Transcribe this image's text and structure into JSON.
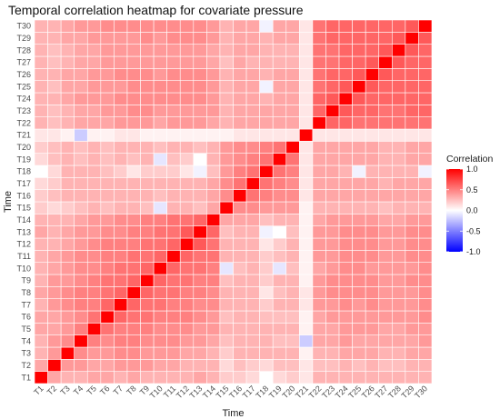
{
  "chart_data": {
    "type": "heatmap",
    "title": "Temporal correlation heatmap for covariate pressure",
    "xlabel": "Time",
    "ylabel": "Time",
    "labels": [
      "T1",
      "T2",
      "T3",
      "T4",
      "T5",
      "T6",
      "T7",
      "T8",
      "T9",
      "T10",
      "T11",
      "T12",
      "T13",
      "T14",
      "T15",
      "T16",
      "T17",
      "T18",
      "T19",
      "T20",
      "T21",
      "T22",
      "T23",
      "T24",
      "T25",
      "T26",
      "T27",
      "T28",
      "T29",
      "T30"
    ],
    "x_axis_order": "T1 to T30 left to right",
    "y_axis_order": "T1 at bottom to T30 at top",
    "color_scale": {
      "name": "Correlation",
      "range": [
        -1,
        1
      ],
      "low_color": "#0000ff",
      "mid_color": "#ffffff",
      "high_color": "#ff0000",
      "ticks": [
        "1.0",
        "0.5",
        "0.0",
        "-0.5",
        "-1.0"
      ]
    },
    "grid": true,
    "legend_position": "right",
    "values": [
      [
        1.0,
        0.35,
        0.3,
        0.3,
        0.35,
        0.35,
        0.3,
        0.35,
        0.3,
        0.3,
        0.3,
        0.3,
        0.35,
        0.3,
        0.2,
        0.2,
        0.15,
        0.0,
        0.15,
        0.2,
        0.1,
        0.3,
        0.3,
        0.3,
        0.3,
        0.3,
        0.3,
        0.3,
        0.3,
        0.3
      ],
      [
        0.35,
        1.0,
        0.4,
        0.4,
        0.35,
        0.35,
        0.4,
        0.4,
        0.4,
        0.35,
        0.35,
        0.3,
        0.3,
        0.3,
        0.15,
        0.25,
        0.2,
        0.15,
        0.25,
        0.25,
        0.1,
        0.25,
        0.25,
        0.3,
        0.25,
        0.3,
        0.25,
        0.25,
        0.3,
        0.3
      ],
      [
        0.3,
        0.4,
        1.0,
        0.45,
        0.4,
        0.4,
        0.45,
        0.45,
        0.4,
        0.4,
        0.4,
        0.35,
        0.35,
        0.3,
        0.2,
        0.3,
        0.3,
        0.3,
        0.3,
        0.3,
        0.05,
        0.3,
        0.3,
        0.35,
        0.35,
        0.35,
        0.3,
        0.3,
        0.35,
        0.35
      ],
      [
        0.3,
        0.4,
        0.45,
        1.0,
        0.5,
        0.45,
        0.5,
        0.5,
        0.45,
        0.45,
        0.45,
        0.4,
        0.4,
        0.35,
        0.25,
        0.3,
        0.3,
        0.3,
        0.25,
        0.25,
        -0.2,
        0.35,
        0.35,
        0.4,
        0.35,
        0.35,
        0.35,
        0.35,
        0.35,
        0.4
      ],
      [
        0.35,
        0.35,
        0.4,
        0.5,
        1.0,
        0.55,
        0.5,
        0.5,
        0.5,
        0.45,
        0.45,
        0.45,
        0.4,
        0.4,
        0.3,
        0.3,
        0.3,
        0.3,
        0.3,
        0.3,
        0.05,
        0.35,
        0.35,
        0.4,
        0.4,
        0.4,
        0.35,
        0.35,
        0.4,
        0.4
      ],
      [
        0.35,
        0.35,
        0.4,
        0.45,
        0.55,
        1.0,
        0.6,
        0.55,
        0.55,
        0.5,
        0.5,
        0.5,
        0.45,
        0.4,
        0.25,
        0.3,
        0.3,
        0.25,
        0.25,
        0.25,
        0.05,
        0.35,
        0.4,
        0.4,
        0.4,
        0.4,
        0.4,
        0.4,
        0.4,
        0.45
      ],
      [
        0.3,
        0.4,
        0.45,
        0.5,
        0.5,
        0.6,
        1.0,
        0.6,
        0.55,
        0.55,
        0.5,
        0.5,
        0.45,
        0.45,
        0.3,
        0.3,
        0.3,
        0.2,
        0.3,
        0.3,
        0.1,
        0.4,
        0.4,
        0.45,
        0.4,
        0.45,
        0.4,
        0.4,
        0.4,
        0.45
      ],
      [
        0.35,
        0.4,
        0.45,
        0.5,
        0.5,
        0.55,
        0.6,
        1.0,
        0.6,
        0.55,
        0.55,
        0.5,
        0.5,
        0.45,
        0.3,
        0.3,
        0.3,
        0.1,
        0.25,
        0.3,
        0.1,
        0.4,
        0.45,
        0.45,
        0.45,
        0.45,
        0.4,
        0.4,
        0.4,
        0.45
      ],
      [
        0.3,
        0.4,
        0.4,
        0.45,
        0.5,
        0.55,
        0.55,
        0.6,
        1.0,
        0.6,
        0.55,
        0.55,
        0.5,
        0.5,
        0.25,
        0.3,
        0.3,
        0.2,
        0.3,
        0.3,
        0.05,
        0.4,
        0.45,
        0.45,
        0.45,
        0.45,
        0.4,
        0.4,
        0.45,
        0.45
      ],
      [
        0.3,
        0.35,
        0.4,
        0.45,
        0.45,
        0.5,
        0.55,
        0.55,
        0.6,
        1.0,
        0.6,
        0.55,
        0.55,
        0.5,
        -0.1,
        0.25,
        0.3,
        0.2,
        -0.1,
        0.25,
        0.05,
        0.35,
        0.4,
        0.45,
        0.45,
        0.4,
        0.4,
        0.4,
        0.4,
        0.45
      ],
      [
        0.3,
        0.35,
        0.4,
        0.45,
        0.45,
        0.5,
        0.5,
        0.55,
        0.55,
        0.6,
        1.0,
        0.6,
        0.55,
        0.55,
        0.3,
        0.3,
        0.3,
        0.2,
        0.25,
        0.3,
        0.05,
        0.4,
        0.4,
        0.45,
        0.45,
        0.45,
        0.4,
        0.4,
        0.45,
        0.45
      ],
      [
        0.3,
        0.3,
        0.35,
        0.4,
        0.45,
        0.5,
        0.5,
        0.5,
        0.55,
        0.55,
        0.6,
        1.0,
        0.65,
        0.55,
        0.3,
        0.3,
        0.3,
        0.1,
        0.2,
        0.3,
        0.05,
        0.4,
        0.4,
        0.45,
        0.45,
        0.45,
        0.4,
        0.4,
        0.45,
        0.45
      ],
      [
        0.35,
        0.3,
        0.35,
        0.4,
        0.4,
        0.45,
        0.45,
        0.5,
        0.5,
        0.55,
        0.55,
        0.65,
        1.0,
        0.6,
        0.25,
        0.3,
        0.3,
        -0.05,
        0.0,
        0.25,
        0.05,
        0.4,
        0.4,
        0.45,
        0.45,
        0.45,
        0.4,
        0.4,
        0.45,
        0.45
      ],
      [
        0.3,
        0.3,
        0.3,
        0.35,
        0.4,
        0.4,
        0.45,
        0.45,
        0.5,
        0.5,
        0.55,
        0.55,
        0.6,
        1.0,
        0.35,
        0.35,
        0.35,
        0.25,
        0.3,
        0.3,
        0.05,
        0.35,
        0.4,
        0.4,
        0.4,
        0.4,
        0.35,
        0.35,
        0.4,
        0.4
      ],
      [
        0.2,
        0.15,
        0.2,
        0.25,
        0.3,
        0.25,
        0.3,
        0.3,
        0.25,
        -0.1,
        0.3,
        0.3,
        0.25,
        0.35,
        1.0,
        0.45,
        0.45,
        0.4,
        0.4,
        0.4,
        0.05,
        0.3,
        0.3,
        0.3,
        0.3,
        0.3,
        0.25,
        0.3,
        0.3,
        0.3
      ],
      [
        0.2,
        0.25,
        0.3,
        0.3,
        0.3,
        0.3,
        0.3,
        0.3,
        0.3,
        0.25,
        0.3,
        0.3,
        0.3,
        0.35,
        0.45,
        1.0,
        0.55,
        0.5,
        0.45,
        0.45,
        0.1,
        0.35,
        0.35,
        0.35,
        0.35,
        0.35,
        0.35,
        0.35,
        0.35,
        0.35
      ],
      [
        0.15,
        0.2,
        0.3,
        0.3,
        0.3,
        0.3,
        0.3,
        0.3,
        0.3,
        0.3,
        0.3,
        0.3,
        0.3,
        0.35,
        0.45,
        0.55,
        1.0,
        0.55,
        0.5,
        0.45,
        0.1,
        0.35,
        0.35,
        0.35,
        0.35,
        0.35,
        0.3,
        0.35,
        0.35,
        0.35
      ],
      [
        0.0,
        0.15,
        0.3,
        0.3,
        0.3,
        0.25,
        0.2,
        0.1,
        0.2,
        0.2,
        0.2,
        0.1,
        -0.05,
        0.25,
        0.4,
        0.5,
        0.55,
        1.0,
        0.55,
        0.5,
        0.1,
        0.35,
        0.35,
        0.3,
        -0.05,
        0.3,
        0.3,
        0.3,
        0.3,
        -0.05
      ],
      [
        0.15,
        0.25,
        0.3,
        0.25,
        0.3,
        0.25,
        0.3,
        0.25,
        0.3,
        -0.1,
        0.25,
        0.2,
        0.0,
        0.3,
        0.4,
        0.45,
        0.5,
        0.55,
        1.0,
        0.55,
        0.1,
        0.35,
        0.35,
        0.35,
        0.35,
        0.35,
        0.3,
        0.3,
        0.35,
        0.35
      ],
      [
        0.2,
        0.25,
        0.3,
        0.25,
        0.3,
        0.25,
        0.3,
        0.3,
        0.3,
        0.25,
        0.3,
        0.3,
        0.25,
        0.3,
        0.4,
        0.45,
        0.45,
        0.5,
        0.55,
        1.0,
        0.1,
        0.35,
        0.35,
        0.35,
        0.35,
        0.35,
        0.3,
        0.3,
        0.35,
        0.35
      ],
      [
        0.1,
        0.1,
        0.05,
        -0.2,
        0.05,
        0.05,
        0.1,
        0.1,
        0.05,
        0.05,
        0.05,
        0.05,
        0.05,
        0.05,
        0.05,
        0.1,
        0.1,
        0.1,
        0.1,
        0.1,
        1.0,
        0.1,
        0.1,
        0.1,
        0.1,
        0.1,
        0.1,
        0.1,
        0.1,
        0.1
      ],
      [
        0.3,
        0.25,
        0.3,
        0.35,
        0.35,
        0.35,
        0.4,
        0.4,
        0.4,
        0.35,
        0.4,
        0.4,
        0.4,
        0.35,
        0.3,
        0.35,
        0.35,
        0.35,
        0.35,
        0.35,
        0.1,
        1.0,
        0.6,
        0.6,
        0.55,
        0.55,
        0.55,
        0.55,
        0.55,
        0.55
      ],
      [
        0.3,
        0.25,
        0.3,
        0.35,
        0.35,
        0.4,
        0.4,
        0.45,
        0.45,
        0.4,
        0.4,
        0.4,
        0.4,
        0.4,
        0.3,
        0.35,
        0.35,
        0.35,
        0.35,
        0.35,
        0.1,
        0.6,
        1.0,
        0.65,
        0.6,
        0.6,
        0.55,
        0.55,
        0.6,
        0.6
      ],
      [
        0.3,
        0.3,
        0.35,
        0.4,
        0.4,
        0.4,
        0.45,
        0.45,
        0.45,
        0.45,
        0.45,
        0.45,
        0.45,
        0.4,
        0.3,
        0.35,
        0.35,
        0.3,
        0.35,
        0.35,
        0.1,
        0.6,
        0.65,
        1.0,
        0.65,
        0.6,
        0.6,
        0.6,
        0.6,
        0.6
      ],
      [
        0.3,
        0.25,
        0.35,
        0.35,
        0.4,
        0.4,
        0.4,
        0.45,
        0.45,
        0.45,
        0.45,
        0.45,
        0.45,
        0.4,
        0.3,
        0.35,
        0.35,
        -0.05,
        0.35,
        0.35,
        0.1,
        0.55,
        0.6,
        0.65,
        1.0,
        0.65,
        0.6,
        0.6,
        0.6,
        0.6
      ],
      [
        0.3,
        0.3,
        0.35,
        0.35,
        0.4,
        0.4,
        0.45,
        0.45,
        0.45,
        0.4,
        0.45,
        0.45,
        0.45,
        0.4,
        0.3,
        0.35,
        0.35,
        0.3,
        0.35,
        0.35,
        0.1,
        0.55,
        0.6,
        0.6,
        0.65,
        1.0,
        0.65,
        0.6,
        0.6,
        0.6
      ],
      [
        0.3,
        0.25,
        0.3,
        0.35,
        0.35,
        0.4,
        0.4,
        0.4,
        0.4,
        0.4,
        0.4,
        0.4,
        0.4,
        0.35,
        0.25,
        0.35,
        0.3,
        0.3,
        0.3,
        0.3,
        0.1,
        0.55,
        0.55,
        0.6,
        0.6,
        0.65,
        1.0,
        0.65,
        0.6,
        0.6
      ],
      [
        0.3,
        0.25,
        0.3,
        0.35,
        0.35,
        0.4,
        0.4,
        0.4,
        0.4,
        0.4,
        0.4,
        0.4,
        0.4,
        0.35,
        0.3,
        0.35,
        0.35,
        0.3,
        0.3,
        0.3,
        0.1,
        0.55,
        0.55,
        0.6,
        0.6,
        0.6,
        0.65,
        1.0,
        0.65,
        0.6
      ],
      [
        0.3,
        0.3,
        0.35,
        0.35,
        0.4,
        0.4,
        0.4,
        0.4,
        0.45,
        0.4,
        0.45,
        0.45,
        0.45,
        0.4,
        0.3,
        0.35,
        0.35,
        0.3,
        0.35,
        0.35,
        0.1,
        0.55,
        0.6,
        0.6,
        0.6,
        0.6,
        0.6,
        0.65,
        1.0,
        0.65
      ],
      [
        0.3,
        0.3,
        0.35,
        0.4,
        0.4,
        0.45,
        0.45,
        0.45,
        0.45,
        0.45,
        0.45,
        0.45,
        0.45,
        0.4,
        0.3,
        0.35,
        0.35,
        -0.05,
        0.35,
        0.35,
        0.1,
        0.55,
        0.6,
        0.6,
        0.6,
        0.6,
        0.6,
        0.6,
        0.65,
        1.0
      ]
    ]
  }
}
